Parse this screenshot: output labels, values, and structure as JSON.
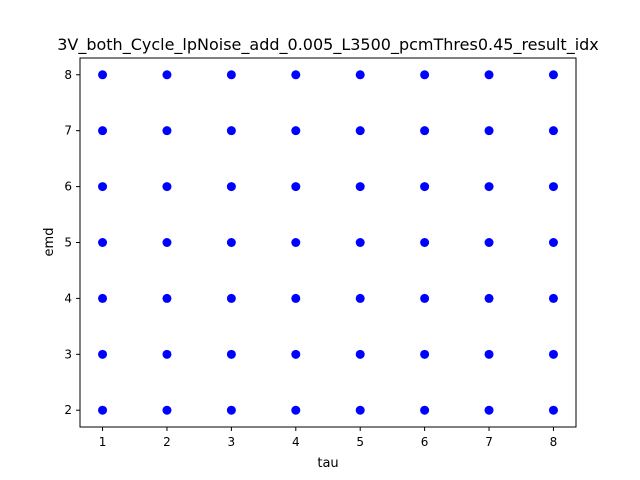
{
  "chart_data": {
    "type": "scatter",
    "title": "3V_both_Cycle_lpNoise_add_0.005_L3500_pcmThres0.45_result_idx",
    "xlabel": "tau",
    "ylabel": "emd",
    "x_ticks": [
      1,
      2,
      3,
      4,
      5,
      6,
      7,
      8
    ],
    "y_ticks": [
      2,
      3,
      4,
      5,
      6,
      7,
      8
    ],
    "xlim": [
      0.65,
      8.35
    ],
    "ylim": [
      1.7,
      8.3
    ],
    "grid": false,
    "marker_color": "#0000ff",
    "points": [
      {
        "x": 1,
        "y": 2
      },
      {
        "x": 1,
        "y": 3
      },
      {
        "x": 1,
        "y": 4
      },
      {
        "x": 1,
        "y": 5
      },
      {
        "x": 1,
        "y": 6
      },
      {
        "x": 1,
        "y": 7
      },
      {
        "x": 1,
        "y": 8
      },
      {
        "x": 2,
        "y": 2
      },
      {
        "x": 2,
        "y": 3
      },
      {
        "x": 2,
        "y": 4
      },
      {
        "x": 2,
        "y": 5
      },
      {
        "x": 2,
        "y": 6
      },
      {
        "x": 2,
        "y": 7
      },
      {
        "x": 2,
        "y": 8
      },
      {
        "x": 3,
        "y": 2
      },
      {
        "x": 3,
        "y": 3
      },
      {
        "x": 3,
        "y": 4
      },
      {
        "x": 3,
        "y": 5
      },
      {
        "x": 3,
        "y": 6
      },
      {
        "x": 3,
        "y": 7
      },
      {
        "x": 3,
        "y": 8
      },
      {
        "x": 4,
        "y": 2
      },
      {
        "x": 4,
        "y": 3
      },
      {
        "x": 4,
        "y": 4
      },
      {
        "x": 4,
        "y": 5
      },
      {
        "x": 4,
        "y": 6
      },
      {
        "x": 4,
        "y": 7
      },
      {
        "x": 4,
        "y": 8
      },
      {
        "x": 5,
        "y": 2
      },
      {
        "x": 5,
        "y": 3
      },
      {
        "x": 5,
        "y": 4
      },
      {
        "x": 5,
        "y": 5
      },
      {
        "x": 5,
        "y": 6
      },
      {
        "x": 5,
        "y": 7
      },
      {
        "x": 5,
        "y": 8
      },
      {
        "x": 6,
        "y": 2
      },
      {
        "x": 6,
        "y": 3
      },
      {
        "x": 6,
        "y": 4
      },
      {
        "x": 6,
        "y": 5
      },
      {
        "x": 6,
        "y": 6
      },
      {
        "x": 6,
        "y": 7
      },
      {
        "x": 6,
        "y": 8
      },
      {
        "x": 7,
        "y": 2
      },
      {
        "x": 7,
        "y": 3
      },
      {
        "x": 7,
        "y": 4
      },
      {
        "x": 7,
        "y": 5
      },
      {
        "x": 7,
        "y": 6
      },
      {
        "x": 7,
        "y": 7
      },
      {
        "x": 7,
        "y": 8
      },
      {
        "x": 8,
        "y": 2
      },
      {
        "x": 8,
        "y": 3
      },
      {
        "x": 8,
        "y": 4
      },
      {
        "x": 8,
        "y": 5
      },
      {
        "x": 8,
        "y": 6
      },
      {
        "x": 8,
        "y": 7
      },
      {
        "x": 8,
        "y": 8
      }
    ]
  }
}
